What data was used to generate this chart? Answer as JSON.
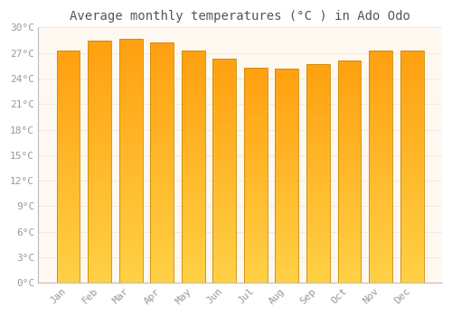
{
  "title": "Average monthly temperatures (°C ) in Ado Odo",
  "months": [
    "Jan",
    "Feb",
    "Mar",
    "Apr",
    "May",
    "Jun",
    "Jul",
    "Aug",
    "Sep",
    "Oct",
    "Nov",
    "Dec"
  ],
  "values": [
    27.3,
    28.5,
    28.7,
    28.2,
    27.3,
    26.3,
    25.3,
    25.2,
    25.7,
    26.1,
    27.3,
    27.3
  ],
  "bar_color_bottom": "#FFD045",
  "bar_color_top": "#FFA010",
  "bar_edge_color": "#CC8800",
  "ylim": [
    0,
    30
  ],
  "yticks": [
    0,
    3,
    6,
    9,
    12,
    15,
    18,
    21,
    24,
    27,
    30
  ],
  "ytick_labels": [
    "0°C",
    "3°C",
    "6°C",
    "9°C",
    "12°C",
    "15°C",
    "18°C",
    "21°C",
    "24°C",
    "27°C",
    "30°C"
  ],
  "plot_bg_color": "#FFF8F0",
  "fig_bg_color": "#FFFFFF",
  "grid_color": "#E8E8E8",
  "title_fontsize": 10,
  "tick_fontsize": 8,
  "font_family": "monospace",
  "tick_color": "#999999",
  "spine_color": "#BBBBBB"
}
